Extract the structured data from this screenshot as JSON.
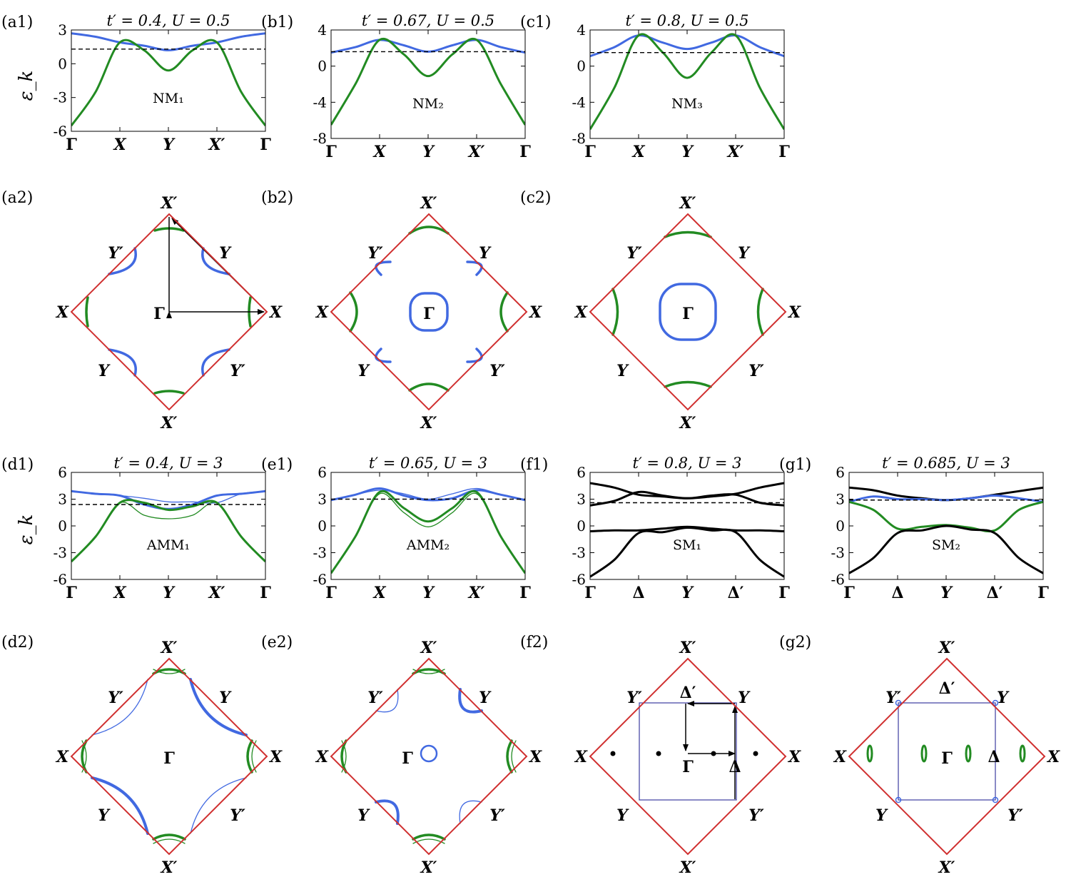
{
  "figure": {
    "colors": {
      "band_upper": "#4169e1",
      "band_lower": "#228b22",
      "band_black": "#000000",
      "bz_edge": "#d03030",
      "inner_square": "#4a4aa8",
      "fermi": "#000000"
    },
    "ylabel": "ε_k",
    "band_panels": [
      {
        "id": "a1",
        "label": "(a1)",
        "title": "t′ = 0.4, U = 0.5",
        "phase": "NM₁",
        "type": "line",
        "xticks": [
          "Γ",
          "X",
          "Y",
          "X′",
          "Γ"
        ],
        "ylim": [
          -6,
          3
        ],
        "yticks": [
          "3",
          "0",
          "-3",
          "-6"
        ],
        "fermi": 1.3,
        "series": [
          {
            "color": "upper",
            "x": [
              0,
              1,
              2,
              3,
              4,
              5,
              6,
              7,
              8
            ],
            "y": [
              2.7,
              2.4,
              1.9,
              1.6,
              1.2,
              1.6,
              1.9,
              2.4,
              2.7
            ]
          },
          {
            "color": "lower",
            "x": [
              0,
              1,
              2,
              3,
              4,
              5,
              6,
              7,
              8
            ],
            "y": [
              -5.5,
              -2.5,
              1.9,
              1.2,
              -0.6,
              1.2,
              1.9,
              -2.5,
              -5.5
            ]
          }
        ]
      },
      {
        "id": "b1",
        "label": "(b1)",
        "title": "t′ = 0.67, U = 0.5",
        "phase": "NM₂",
        "type": "line",
        "xticks": [
          "Γ",
          "X",
          "Y",
          "X′",
          "Γ"
        ],
        "ylim": [
          -8,
          4
        ],
        "yticks": [
          "4",
          "0",
          "-4",
          "-8"
        ],
        "fermi": 1.6,
        "series": [
          {
            "color": "upper",
            "x": [
              0,
              1,
              2,
              3,
              4,
              5,
              6,
              7,
              8
            ],
            "y": [
              1.5,
              2.1,
              2.9,
              2.3,
              1.6,
              2.3,
              2.9,
              2.1,
              1.5
            ]
          },
          {
            "color": "lower",
            "x": [
              0,
              1,
              2,
              3,
              4,
              5,
              6,
              7,
              8
            ],
            "y": [
              -6.5,
              -2,
              2.9,
              1.3,
              -1.1,
              1.3,
              2.9,
              -2,
              -6.5
            ]
          }
        ]
      },
      {
        "id": "c1",
        "label": "(c1)",
        "title": "t′ = 0.8, U = 0.5",
        "phase": "NM₃",
        "type": "line",
        "xticks": [
          "Γ",
          "X",
          "Y",
          "X′",
          "Γ"
        ],
        "ylim": [
          -8,
          4
        ],
        "yticks": [
          "4",
          "0",
          "-4",
          "-8"
        ],
        "fermi": 1.5,
        "series": [
          {
            "color": "upper",
            "x": [
              0,
              1,
              2,
              3,
              4,
              5,
              6,
              7,
              8
            ],
            "y": [
              1.1,
              2.1,
              3.4,
              2.6,
              1.9,
              2.6,
              3.4,
              2.1,
              1.1
            ]
          },
          {
            "color": "lower",
            "x": [
              0,
              1,
              2,
              3,
              4,
              5,
              6,
              7,
              8
            ],
            "y": [
              -7,
              -2.4,
              3.4,
              1.5,
              -1.3,
              1.5,
              3.4,
              -2.4,
              -7
            ]
          }
        ]
      },
      {
        "id": "d1",
        "label": "(d1)",
        "title": "t′ = 0.4, U = 3",
        "phase": "AMM₁",
        "type": "line",
        "xticks": [
          "Γ",
          "X",
          "Y",
          "X′",
          "Γ"
        ],
        "ylim": [
          -6,
          6
        ],
        "yticks": [
          "6",
          "3",
          "0",
          "-3",
          "-6"
        ],
        "fermi": 2.4,
        "series": [
          {
            "color": "upper",
            "width": 3,
            "x": [
              0,
              1,
              2,
              3,
              4,
              5,
              6,
              7,
              8
            ],
            "y": [
              3.9,
              3.6,
              3.4,
              2.4,
              1.9,
              2.4,
              3.4,
              3.6,
              3.9
            ]
          },
          {
            "color": "upper",
            "width": 1.3,
            "x": [
              0,
              1,
              2,
              3,
              4,
              5,
              6,
              7,
              8
            ],
            "y": [
              3.9,
              3.6,
              3.4,
              3.1,
              2.7,
              2.7,
              2.6,
              3.6,
              3.9
            ]
          },
          {
            "color": "lower",
            "width": 3,
            "x": [
              0,
              1,
              2,
              3,
              4,
              5,
              6,
              7,
              8
            ],
            "y": [
              -4,
              -1.2,
              2.6,
              2.6,
              1.8,
              2.2,
              2.6,
              -1.2,
              -4
            ]
          },
          {
            "color": "lower",
            "width": 1.3,
            "x": [
              0,
              1,
              2,
              3,
              4,
              5,
              6,
              7,
              8
            ],
            "y": [
              -4,
              -1.2,
              2.6,
              1.2,
              0.8,
              1.2,
              2.6,
              -1.2,
              -4
            ]
          }
        ]
      },
      {
        "id": "e1",
        "label": "(e1)",
        "title": "t′ = 0.65, U = 3",
        "phase": "AMM₂",
        "type": "line",
        "xticks": [
          "Γ",
          "X",
          "Y",
          "X′",
          "Γ"
        ],
        "ylim": [
          -6,
          6
        ],
        "yticks": [
          "6",
          "3",
          "0",
          "-3",
          "-6"
        ],
        "fermi": 3.0,
        "series": [
          {
            "color": "upper",
            "width": 3,
            "x": [
              0,
              1,
              2,
              3,
              4,
              5,
              6,
              7,
              8
            ],
            "y": [
              2.9,
              3.5,
              4.2,
              3.4,
              2.9,
              3.1,
              4.0,
              3.5,
              2.9
            ]
          },
          {
            "color": "upper",
            "width": 1.3,
            "x": [
              0,
              1,
              2,
              3,
              4,
              5,
              6,
              7,
              8
            ],
            "y": [
              2.9,
              3.5,
              4.0,
              3.6,
              3.0,
              3.6,
              4.2,
              3.5,
              2.9
            ]
          },
          {
            "color": "lower",
            "width": 3,
            "x": [
              0,
              1,
              2,
              3,
              4,
              5,
              6,
              7,
              8
            ],
            "y": [
              -5.3,
              -1.2,
              3.8,
              2,
              0.5,
              2,
              3.8,
              -1.2,
              -5.3
            ]
          },
          {
            "color": "lower",
            "width": 1.3,
            "x": [
              0,
              1,
              2,
              3,
              4,
              5,
              6,
              7,
              8
            ],
            "y": [
              -5.3,
              -1.2,
              3.6,
              1.5,
              -0.1,
              1.5,
              3.6,
              -1.2,
              -5.3
            ]
          }
        ]
      },
      {
        "id": "f1",
        "label": "(f1)",
        "title": "t′ = 0.8, U = 3",
        "phase": "SM₁",
        "type": "line",
        "xticks": [
          "Γ",
          "Δ",
          "Y",
          "Δ′",
          "Γ"
        ],
        "ylim": [
          -6,
          6
        ],
        "yticks": [
          "6",
          "3",
          "0",
          "-3",
          "-6"
        ],
        "fermi": 2.6,
        "series": [
          {
            "color": "black",
            "x": [
              0,
              1,
              2,
              3,
              4,
              5,
              6,
              7,
              8
            ],
            "y": [
              4.8,
              4.3,
              3.5,
              3.3,
              3.1,
              3.3,
              3.6,
              4.3,
              4.8
            ]
          },
          {
            "color": "black",
            "x": [
              0,
              1,
              2,
              3,
              4,
              5,
              6,
              7,
              8
            ],
            "y": [
              2.3,
              2.8,
              3.8,
              3.4,
              3.1,
              3.4,
              3.5,
              2.6,
              2.3
            ]
          },
          {
            "color": "black",
            "x": [
              0,
              1,
              2,
              3,
              4,
              5,
              6,
              7,
              8
            ],
            "y": [
              -0.6,
              -0.5,
              -0.5,
              -0.3,
              -0.1,
              -0.3,
              -0.5,
              -0.5,
              -0.6
            ]
          },
          {
            "color": "black",
            "x": [
              0,
              1,
              2,
              3,
              4,
              5,
              6,
              7,
              8
            ],
            "y": [
              -5.7,
              -3.8,
              -0.8,
              -0.7,
              -0.2,
              -0.5,
              -0.7,
              -3.8,
              -5.7
            ]
          }
        ]
      },
      {
        "id": "g1",
        "label": "(g1)",
        "title": "t′ = 0.685, U = 3",
        "phase": "SM₂",
        "type": "line",
        "xticks": [
          "Γ",
          "Δ",
          "Y",
          "Δ′",
          "Γ"
        ],
        "ylim": [
          -6,
          6
        ],
        "yticks": [
          "6",
          "3",
          "0",
          "-3",
          "-6"
        ],
        "fermi": 2.9,
        "series": [
          {
            "color": "black",
            "x": [
              0,
              1,
              2,
              3,
              4,
              5,
              6,
              7,
              8
            ],
            "y": [
              4.3,
              4.0,
              3.4,
              3.1,
              2.9,
              3.1,
              3.5,
              3.9,
              4.3
            ]
          },
          {
            "color": "upper",
            "x": [
              0,
              1,
              2,
              3,
              4,
              5,
              6,
              7,
              8
            ],
            "y": [
              2.7,
              3.3,
              3.0,
              3.0,
              2.9,
              3.1,
              3.4,
              3.1,
              2.7
            ]
          },
          {
            "color": "lower",
            "x": [
              0,
              1,
              2,
              3,
              4,
              5,
              6,
              7,
              8
            ],
            "y": [
              2.7,
              1.8,
              -0.3,
              -0.1,
              0.1,
              -0.2,
              -0.5,
              1.8,
              2.7
            ]
          },
          {
            "color": "black",
            "x": [
              0,
              1,
              2,
              3,
              4,
              5,
              6,
              7,
              8
            ],
            "y": [
              -5.3,
              -3.6,
              -0.8,
              -0.5,
              0,
              -0.4,
              -0.8,
              -3.6,
              -5.3
            ]
          }
        ]
      }
    ],
    "bz_panels": [
      {
        "id": "a2",
        "label": "(a2)",
        "top": "X′",
        "bottom": "X′",
        "left": "X",
        "right": "X",
        "ul": "Y′",
        "ur": "Y",
        "ll": "Y",
        "lr": "Y′",
        "center": "Γ",
        "variant": "a2"
      },
      {
        "id": "b2",
        "label": "(b2)",
        "top": "X′",
        "bottom": "X′",
        "left": "X",
        "right": "X",
        "ul": "Y′",
        "ur": "Y",
        "ll": "Y",
        "lr": "Y′",
        "center": "Γ",
        "variant": "b2"
      },
      {
        "id": "c2",
        "label": "(c2)",
        "top": "X′",
        "bottom": "X′",
        "left": "X",
        "right": "X",
        "ul": "Y′",
        "ur": "Y",
        "ll": "Y",
        "lr": "Y′",
        "center": "Γ",
        "variant": "c2"
      },
      {
        "id": "d2",
        "label": "(d2)",
        "top": "X′",
        "bottom": "X′",
        "left": "X",
        "right": "X",
        "ul": "Y′",
        "ur": "Y",
        "ll": "Y",
        "lr": "Y′",
        "center": "Γ",
        "variant": "d2"
      },
      {
        "id": "e2",
        "label": "(e2)",
        "top": "X′",
        "bottom": "X′",
        "left": "X",
        "right": "X",
        "ul": "Y′",
        "ur": "Y",
        "ll": "Y",
        "lr": "Y′",
        "center": "Γ",
        "variant": "e2"
      },
      {
        "id": "f2",
        "label": "(f2)",
        "top": "X′",
        "bottom": "X′",
        "left": "X",
        "right": "X",
        "ul": "Y′",
        "ur": "Y",
        "ll": "Y",
        "lr": "Y′",
        "center": "Γ",
        "extra1": "Δ′",
        "extra2": "Δ",
        "variant": "f2"
      },
      {
        "id": "g2",
        "label": "(g2)",
        "top": "X′",
        "bottom": "X′",
        "left": "X",
        "right": "X",
        "ul": "Y′",
        "ur": "Y",
        "ll": "Y",
        "lr": "Y′",
        "center": "Γ",
        "extra1": "Δ′",
        "extra2": "Δ",
        "variant": "g2"
      }
    ]
  }
}
